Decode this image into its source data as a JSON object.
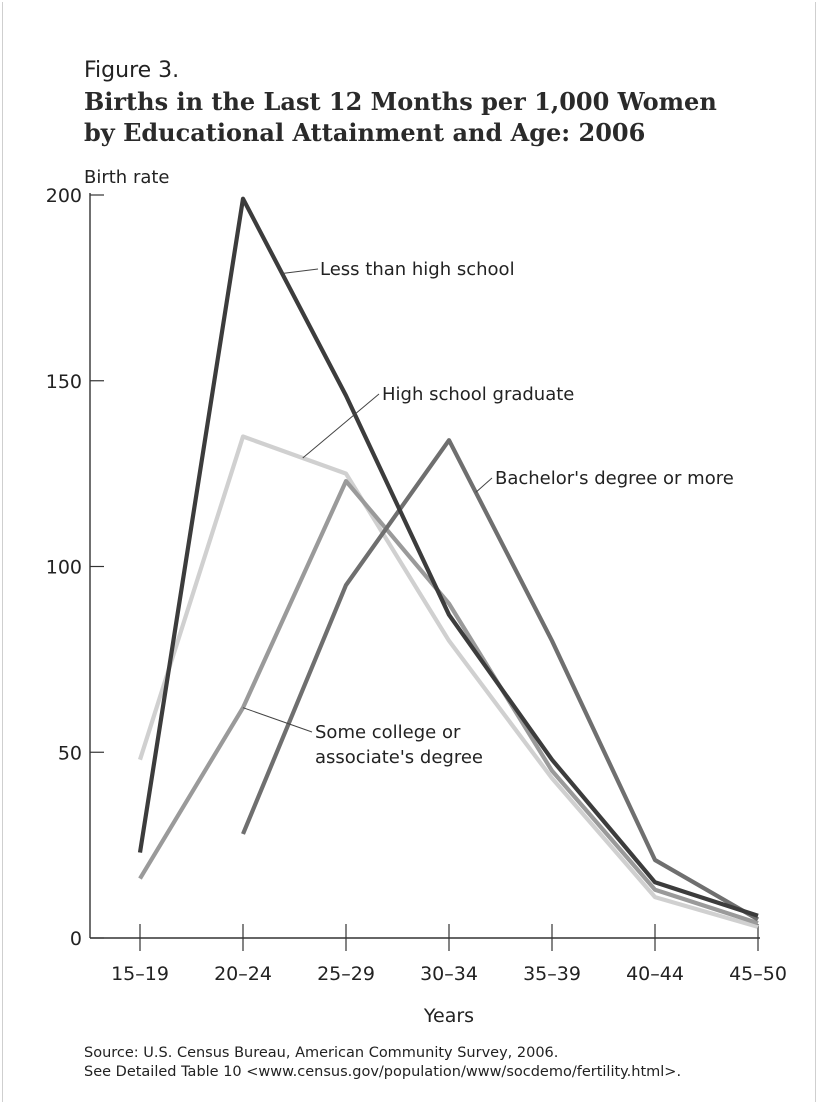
{
  "figure_label": "Figure 3.",
  "title_lines": [
    "Births in the Last 12 Months per 1,000 Women",
    "by Educational Attainment and Age: 2006"
  ],
  "source_lines": [
    "Source: U.S. Census Bureau, American Community Survey, 2006.",
    "See Detailed Table 10 <www.census.gov/population/www/socdemo/fertility.html>."
  ],
  "chart_data": {
    "type": "line",
    "title": "Births in the Last 12 Months per 1,000 Women by Educational Attainment and Age: 2006",
    "xlabel": "Years",
    "ylabel": "Birth rate",
    "ylim": [
      0,
      200
    ],
    "yticks": [
      0,
      50,
      100,
      150,
      200
    ],
    "categories": [
      "15–19",
      "20–24",
      "25–29",
      "30–34",
      "35–39",
      "40–44",
      "45–50"
    ],
    "grid": false,
    "series": [
      {
        "name": "High school graduate",
        "values": [
          48,
          135,
          125,
          80,
          43,
          11,
          3
        ],
        "color": "#d0d0d0"
      },
      {
        "name": "Some college or associate's degree",
        "values": [
          16,
          62,
          123,
          90,
          45,
          13,
          4
        ],
        "color": "#9a9a9a"
      },
      {
        "name": "Bachelor's degree or more",
        "values": [
          null,
          28,
          95,
          134,
          80,
          21,
          5
        ],
        "color": "#6f6f6f"
      },
      {
        "name": "Less than high school",
        "values": [
          23,
          199,
          146,
          87,
          48,
          15,
          6
        ],
        "color": "#3c3c3c"
      }
    ],
    "annotations": [
      {
        "series": "Less than high school",
        "lines": [
          "Less than high school"
        ]
      },
      {
        "series": "High school graduate",
        "lines": [
          "High school graduate"
        ]
      },
      {
        "series": "Bachelor's degree or more",
        "lines": [
          "Bachelor's degree or more"
        ]
      },
      {
        "series": "Some college or associate's degree",
        "lines": [
          "Some college or",
          "associate's degree"
        ]
      }
    ]
  }
}
